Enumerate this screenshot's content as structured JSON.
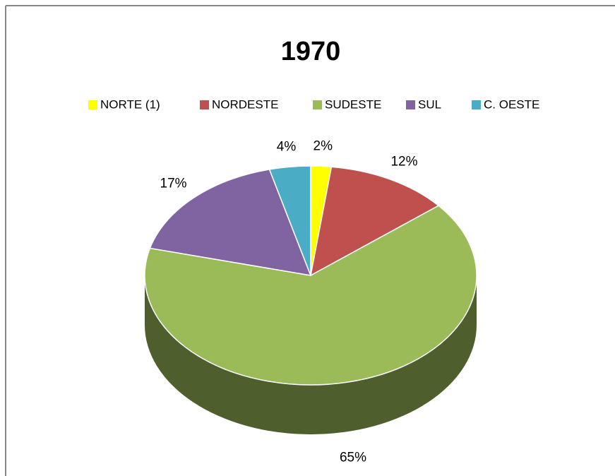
{
  "chart_data": {
    "type": "pie3d",
    "title": "1970",
    "categories": [
      "NORTE (1)",
      "NORDESTE",
      "SUDESTE",
      "SUL",
      "C. OESTE"
    ],
    "values": [
      2,
      12,
      65,
      17,
      4
    ],
    "value_labels": [
      "2%",
      "12%",
      "65%",
      "17%",
      "4%"
    ],
    "colors": [
      "#ffff00",
      "#c0504d",
      "#9bbb59",
      "#8064a2",
      "#4bacc6"
    ],
    "legend": "top"
  }
}
